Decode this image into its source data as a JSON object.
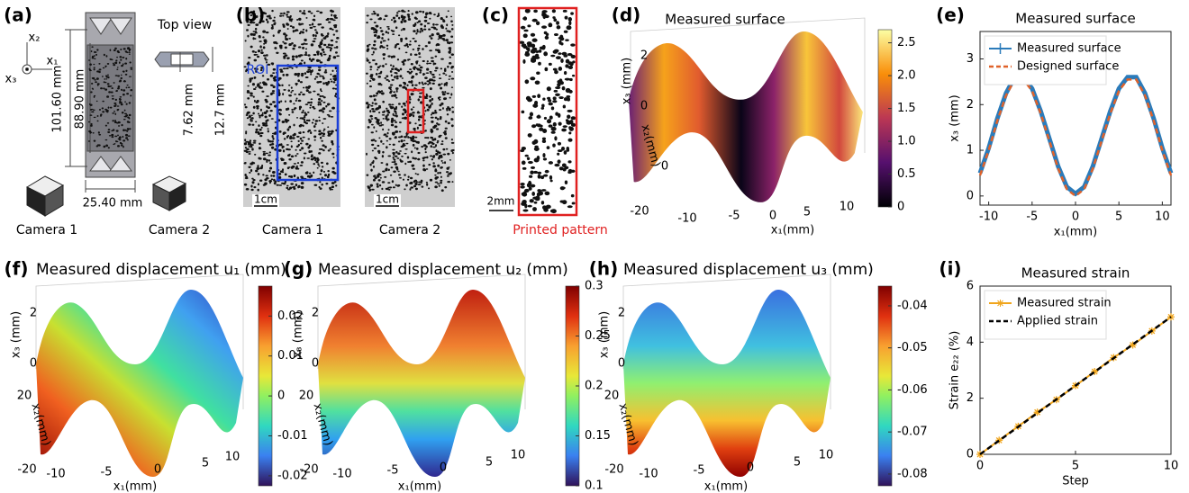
{
  "panels": {
    "a": {
      "label": "(a)",
      "axes": [
        "x₂",
        "x₁",
        "x₃"
      ],
      "top_view": "Top view",
      "dims": [
        "101.60 mm",
        "88.90 mm",
        "7.62 mm",
        "12.7 mm",
        "25.40 mm"
      ],
      "cameras": [
        "Camera 1",
        "Camera 2"
      ]
    },
    "b": {
      "label": "(b)",
      "roi": "ROI",
      "scale": [
        "1cm",
        "1cm"
      ],
      "cameras": [
        "Camera 1",
        "Camera 2"
      ]
    },
    "c": {
      "label": "(c)",
      "scale": "2mm",
      "caption": "Printed pattern"
    },
    "d": {
      "label": "(d)",
      "title": "Measured surface",
      "x_label": "x₁(mm)",
      "y_label": "x₂(mm)",
      "z_label": "x₃ (mm)",
      "xticks": [
        -10,
        -5,
        0,
        5,
        10
      ],
      "yticks": [
        -20,
        0
      ],
      "zticks": [
        0,
        2
      ],
      "clim": [
        0,
        2.7
      ],
      "cticks": [
        0,
        0.5,
        {
          "value": 1,
          "label": "1.0"
        },
        1.5,
        {
          "value": 2,
          "label": "2.0"
        },
        2.5
      ]
    },
    "f": {
      "label": "(f)",
      "title": "Measured displacement u₁ (mm)",
      "x_label": "x₁(mm)",
      "y_label": "x₂(mm)",
      "z_label": "x₃ (mm)",
      "xticks": [
        -10,
        -5,
        0,
        5,
        10
      ],
      "yticks": [
        -20,
        20
      ],
      "zticks": [
        0,
        2
      ],
      "clim": [
        -0.0225,
        0.0275
      ],
      "cticks": [
        -0.02,
        -0.01,
        0,
        0.01,
        0.02
      ]
    },
    "g": {
      "label": "(g)",
      "title": "Measured displacement u₂ (mm)",
      "x_label": "x₁(mm)",
      "y_label": "x₂(mm)",
      "z_label": "x₃ (mm)",
      "xticks": [
        -10,
        -5,
        0,
        5,
        10
      ],
      "yticks": [
        -20,
        20
      ],
      "zticks": [
        0,
        2
      ],
      "clim": [
        0.1,
        0.3
      ],
      "cticks": [
        0.1,
        0.15,
        0.2,
        0.25,
        0.3
      ]
    },
    "h": {
      "label": "(h)",
      "title": "Measured displacement u₃ (mm)",
      "x_label": "x₁(mm)",
      "y_label": "x₂(mm)",
      "z_label": "x₃ (mm)",
      "xticks": [
        -10,
        -5,
        0,
        5,
        10
      ],
      "yticks": [
        -20,
        20
      ],
      "zticks": [
        0,
        2
      ],
      "clim": [
        -0.0828,
        -0.0353
      ],
      "cticks": [
        -0.08,
        -0.07,
        -0.06,
        -0.05,
        -0.04
      ]
    }
  },
  "chart_data": [
    {
      "type": "line",
      "label": "(e)",
      "title": "Measured surface",
      "x_label": "x₁(mm)",
      "y_label": "x₃ (mm)",
      "x": [
        -11,
        -10,
        -9,
        -8,
        -7,
        -6,
        -5,
        -4,
        -3,
        -2,
        -1,
        0,
        1,
        2,
        3,
        4,
        5,
        6,
        7,
        8,
        9,
        10,
        11
      ],
      "series": [
        {
          "name": "Measured surface",
          "color": "#2b7bba",
          "dash": false,
          "values": [
            0.5,
            1.05,
            1.7,
            2.25,
            2.6,
            2.6,
            2.35,
            1.85,
            1.25,
            0.65,
            0.2,
            0.05,
            0.2,
            0.65,
            1.25,
            1.85,
            2.35,
            2.6,
            2.6,
            2.25,
            1.7,
            1.05,
            0.5
          ]
        },
        {
          "name": "Designed surface",
          "color": "#e0622a",
          "dash": true,
          "values": [
            0.45,
            1,
            1.65,
            2.2,
            2.55,
            2.55,
            2.3,
            1.8,
            1.2,
            0.6,
            0.15,
            0,
            0.15,
            0.6,
            1.2,
            1.8,
            2.3,
            2.55,
            2.55,
            2.2,
            1.65,
            1,
            0.45
          ]
        }
      ],
      "xlim": [
        -11,
        11
      ],
      "ylim": [
        -0.2,
        3.6
      ],
      "xticks": [
        -10,
        -5,
        0,
        5,
        10
      ],
      "yticks": [
        0,
        1,
        2,
        3
      ],
      "legend": "upper left"
    },
    {
      "type": "line",
      "label": "(i)",
      "title": "Measured strain",
      "x_label": "Step",
      "y_label": "Strain e₂₂ (%)",
      "x": [
        0,
        1,
        2,
        3,
        4,
        5,
        6,
        7,
        8,
        9,
        10
      ],
      "series": [
        {
          "name": "Measured strain",
          "color": "#f0a51c",
          "dash": false,
          "marker": "asterisk",
          "values": [
            0,
            0.5,
            1,
            1.5,
            1.95,
            2.45,
            2.95,
            3.45,
            3.9,
            4.4,
            4.9
          ]
        },
        {
          "name": "Applied strain",
          "color": "#000000",
          "dash": true,
          "values": [
            0,
            0.49,
            0.98,
            1.47,
            1.96,
            2.45,
            2.94,
            3.43,
            3.92,
            4.41,
            4.9
          ]
        }
      ],
      "xlim": [
        0,
        10
      ],
      "ylim": [
        0,
        6
      ],
      "xticks": [
        0,
        5,
        10
      ],
      "yticks": [
        0,
        2,
        4,
        6
      ],
      "legend": "upper left"
    }
  ]
}
